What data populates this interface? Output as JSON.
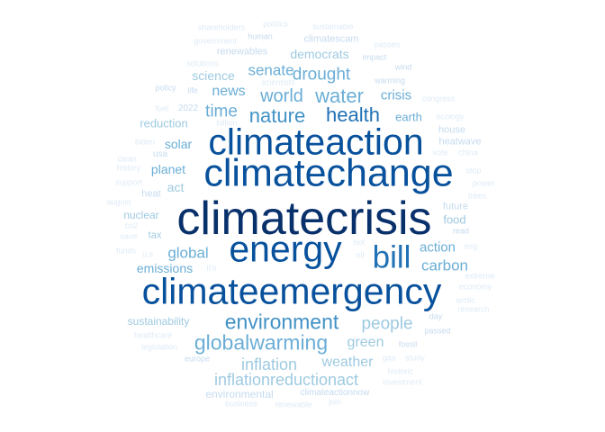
{
  "palette": {
    "c1": "#08306b",
    "c2": "#08519c",
    "c3": "#2171b5",
    "c4": "#4292c6",
    "c5": "#6baed6",
    "c6": "#9ecae1",
    "c7": "#c6dbef",
    "c8": "#deebf7"
  },
  "words": [
    {
      "text": "climatecrisis",
      "weight": 1.0,
      "color": "#08306b"
    },
    {
      "text": "climatechange",
      "weight": 0.82,
      "color": "#08519c"
    },
    {
      "text": "climateaction",
      "weight": 0.79,
      "color": "#08519c"
    },
    {
      "text": "climateemergency",
      "weight": 0.78,
      "color": "#08519c"
    },
    {
      "text": "energy",
      "weight": 0.78,
      "color": "#08519c"
    },
    {
      "text": "bill",
      "weight": 0.68,
      "color": "#2171b5"
    },
    {
      "text": "health",
      "weight": 0.43,
      "color": "#2171b5"
    },
    {
      "text": "nature",
      "weight": 0.42,
      "color": "#4292c6"
    },
    {
      "text": "environment",
      "weight": 0.45,
      "color": "#4292c6"
    },
    {
      "text": "globalwarming",
      "weight": 0.45,
      "color": "#6baed6"
    },
    {
      "text": "water",
      "weight": 0.42,
      "color": "#6baed6"
    },
    {
      "text": "world",
      "weight": 0.38,
      "color": "#6baed6"
    },
    {
      "text": "drought",
      "weight": 0.36,
      "color": "#6baed6"
    },
    {
      "text": "people",
      "weight": 0.37,
      "color": "#9ecae1"
    },
    {
      "text": "inflationreductionact",
      "weight": 0.35,
      "color": "#9ecae1"
    },
    {
      "text": "inflation",
      "weight": 0.35,
      "color": "#9ecae1"
    },
    {
      "text": "time",
      "weight": 0.37,
      "color": "#6baed6"
    },
    {
      "text": "global",
      "weight": 0.33,
      "color": "#6baed6"
    },
    {
      "text": "carbon",
      "weight": 0.32,
      "color": "#6baed6"
    },
    {
      "text": "senate",
      "weight": 0.32,
      "color": "#6baed6"
    },
    {
      "text": "news",
      "weight": 0.3,
      "color": "#6baed6"
    },
    {
      "text": "green",
      "weight": 0.3,
      "color": "#9ecae1"
    },
    {
      "text": "weather",
      "weight": 0.3,
      "color": "#9ecae1"
    },
    {
      "text": "crisis",
      "weight": 0.28,
      "color": "#6baed6"
    },
    {
      "text": "action",
      "weight": 0.28,
      "color": "#6baed6"
    },
    {
      "text": "emissions",
      "weight": 0.27,
      "color": "#6baed6"
    },
    {
      "text": "planet",
      "weight": 0.27,
      "color": "#6baed6"
    },
    {
      "text": "solar",
      "weight": 0.27,
      "color": "#6baed6"
    },
    {
      "text": "democrats",
      "weight": 0.26,
      "color": "#9ecae1"
    },
    {
      "text": "sustainability",
      "weight": 0.24,
      "color": "#9ecae1"
    },
    {
      "text": "science",
      "weight": 0.26,
      "color": "#9ecae1"
    },
    {
      "text": "reduction",
      "weight": 0.25,
      "color": "#9ecae1"
    },
    {
      "text": "earth",
      "weight": 0.25,
      "color": "#6baed6"
    },
    {
      "text": "act",
      "weight": 0.27,
      "color": "#9ecae1"
    },
    {
      "text": "nuclear",
      "weight": 0.23,
      "color": "#9ecae1"
    },
    {
      "text": "food",
      "weight": 0.25,
      "color": "#9ecae1"
    },
    {
      "text": "environmental",
      "weight": 0.24,
      "color": "#c6dbef"
    },
    {
      "text": "climatescam",
      "weight": 0.22,
      "color": "#c6dbef"
    },
    {
      "text": "renewables",
      "weight": 0.22,
      "color": "#c6dbef"
    },
    {
      "text": "house",
      "weight": 0.22,
      "color": "#c6dbef"
    },
    {
      "text": "heatwave",
      "weight": 0.22,
      "color": "#c6dbef"
    },
    {
      "text": "tax",
      "weight": 0.22,
      "color": "#9ecae1"
    },
    {
      "text": "usa",
      "weight": 0.2,
      "color": "#c6dbef"
    },
    {
      "text": "heat",
      "weight": 0.21,
      "color": "#c6dbef"
    },
    {
      "text": "future",
      "weight": 0.21,
      "color": "#c6dbef"
    },
    {
      "text": "climateactionnow",
      "weight": 0.19,
      "color": "#c6dbef"
    },
    {
      "text": "2022",
      "weight": 0.19,
      "color": "#c6dbef"
    },
    {
      "text": "human",
      "weight": 0.18,
      "color": "#c6dbef"
    },
    {
      "text": "warming",
      "weight": 0.18,
      "color": "#c6dbef"
    },
    {
      "text": "fossil",
      "weight": 0.18,
      "color": "#c6dbef"
    },
    {
      "text": "europe",
      "weight": 0.18,
      "color": "#c6dbef"
    },
    {
      "text": "read",
      "weight": 0.18,
      "color": "#c6dbef"
    },
    {
      "text": "day",
      "weight": 0.17,
      "color": "#c6dbef"
    },
    {
      "text": "passed",
      "weight": 0.17,
      "color": "#c6dbef"
    },
    {
      "text": "policy",
      "weight": 0.16,
      "color": "#c6dbef"
    },
    {
      "text": "life",
      "weight": 0.16,
      "color": "#c6dbef"
    },
    {
      "text": "impact",
      "weight": 0.16,
      "color": "#c6dbef"
    },
    {
      "text": "wind",
      "weight": 0.16,
      "color": "#c6dbef"
    },
    {
      "text": "congress",
      "weight": 0.16,
      "color": "#deebf7"
    },
    {
      "text": "ecology",
      "weight": 0.15,
      "color": "#deebf7"
    },
    {
      "text": "economy",
      "weight": 0.15,
      "color": "#deebf7"
    },
    {
      "text": "biden",
      "weight": 0.15,
      "color": "#deebf7"
    },
    {
      "text": "clean",
      "weight": 0.15,
      "color": "#deebf7"
    },
    {
      "text": "fuel",
      "weight": 0.15,
      "color": "#deebf7"
    },
    {
      "text": "gas",
      "weight": 0.15,
      "color": "#deebf7"
    },
    {
      "text": "study",
      "weight": 0.15,
      "color": "#deebf7"
    },
    {
      "text": "healthcare",
      "weight": 0.15,
      "color": "#deebf7"
    },
    {
      "text": "business",
      "weight": 0.14,
      "color": "#deebf7"
    },
    {
      "text": "renewable",
      "weight": 0.14,
      "color": "#deebf7"
    },
    {
      "text": "it's",
      "weight": 0.16,
      "color": "#deebf7"
    },
    {
      "text": "u.s",
      "weight": 0.15,
      "color": "#deebf7"
    },
    {
      "text": "esg",
      "weight": 0.14,
      "color": "#deebf7"
    },
    {
      "text": "power",
      "weight": 0.14,
      "color": "#deebf7"
    },
    {
      "text": "china",
      "weight": 0.14,
      "color": "#deebf7"
    },
    {
      "text": "shareholders",
      "weight": 0.12,
      "color": "#deebf7"
    },
    {
      "text": "politics",
      "weight": 0.12,
      "color": "#deebf7"
    },
    {
      "text": "sustainable",
      "weight": 0.12,
      "color": "#deebf7"
    },
    {
      "text": "government",
      "weight": 0.12,
      "color": "#deebf7"
    },
    {
      "text": "passes",
      "weight": 0.13,
      "color": "#deebf7"
    },
    {
      "text": "solutions",
      "weight": 0.12,
      "color": "#deebf7"
    },
    {
      "text": "scientists",
      "weight": 0.12,
      "color": "#deebf7"
    },
    {
      "text": "billion",
      "weight": 0.12,
      "color": "#deebf7"
    },
    {
      "text": "history",
      "weight": 0.12,
      "color": "#deebf7"
    },
    {
      "text": "vote",
      "weight": 0.12,
      "color": "#deebf7"
    },
    {
      "text": "stop",
      "weight": 0.12,
      "color": "#deebf7"
    },
    {
      "text": "support",
      "weight": 0.12,
      "color": "#deebf7"
    },
    {
      "text": "co2",
      "weight": 0.13,
      "color": "#deebf7"
    },
    {
      "text": "trees",
      "weight": 0.13,
      "color": "#deebf7"
    },
    {
      "text": "august",
      "weight": 0.12,
      "color": "#deebf7"
    },
    {
      "text": "save",
      "weight": 0.13,
      "color": "#deebf7"
    },
    {
      "text": "funds",
      "weight": 0.12,
      "color": "#deebf7"
    },
    {
      "text": "extreme",
      "weight": 0.12,
      "color": "#deebf7"
    },
    {
      "text": "arctic",
      "weight": 0.12,
      "color": "#deebf7"
    },
    {
      "text": "research",
      "weight": 0.12,
      "color": "#deebf7"
    },
    {
      "text": "legislation",
      "weight": 0.12,
      "color": "#deebf7"
    },
    {
      "text": "historic",
      "weight": 0.12,
      "color": "#deebf7"
    },
    {
      "text": "investment",
      "weight": 0.11,
      "color": "#deebf7"
    },
    {
      "text": "join",
      "weight": 0.11,
      "color": "#deebf7"
    },
    {
      "text": "hot",
      "weight": 0.11,
      "color": "#deebf7"
    },
    {
      "text": "oil",
      "weight": 0.11,
      "color": "#deebf7"
    }
  ]
}
